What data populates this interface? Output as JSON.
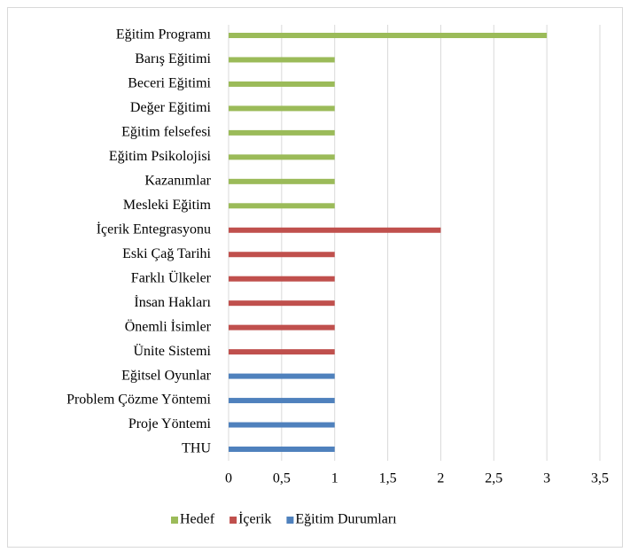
{
  "chart_data": {
    "type": "barh",
    "categories": [
      "Eğitim Programı",
      "Barış Eğitimi",
      "Beceri Eğitimi",
      "Değer Eğitimi",
      "Eğitim felsefesi",
      "Eğitim Psikolojisi",
      "Kazanımlar",
      "Mesleki Eğitim",
      "İçerik Entegrasyonu",
      "Eski Çağ Tarihi",
      "Farklı Ülkeler",
      "İnsan Hakları",
      "Önemli İsimler",
      "Ünite Sistemi",
      "Eğitsel Oyunlar",
      "Problem Çözme Yöntemi",
      "Proje Yöntemi",
      "THU"
    ],
    "series": [
      {
        "name": "Hedef",
        "color": "#9bbb59",
        "values": [
          3,
          1,
          1,
          1,
          1,
          1,
          1,
          1,
          null,
          null,
          null,
          null,
          null,
          null,
          null,
          null,
          null,
          null
        ]
      },
      {
        "name": "İçerik",
        "color": "#c0504d",
        "values": [
          null,
          null,
          null,
          null,
          null,
          null,
          null,
          null,
          2,
          1,
          1,
          1,
          1,
          1,
          null,
          null,
          null,
          null
        ]
      },
      {
        "name": "Eğitim Durumları",
        "color": "#4f81bd",
        "values": [
          null,
          null,
          null,
          null,
          null,
          null,
          null,
          null,
          null,
          null,
          null,
          null,
          null,
          null,
          1,
          1,
          1,
          1
        ]
      }
    ],
    "xlim": [
      0,
      3.5
    ],
    "xticks": [
      0,
      {
        "value": 0.5,
        "label": "0,5"
      },
      1,
      {
        "value": 1.5,
        "label": "1,5"
      },
      2,
      {
        "value": 2.5,
        "label": "2,5"
      },
      3,
      {
        "value": 3.5,
        "label": "3,5"
      }
    ],
    "grid": true,
    "legend": "bottom"
  }
}
